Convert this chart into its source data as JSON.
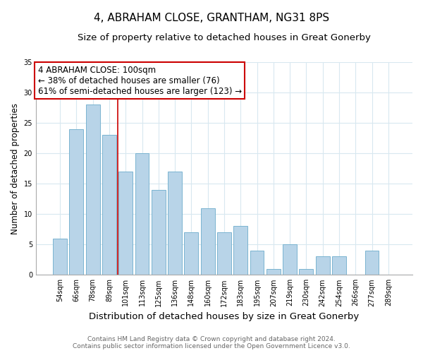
{
  "title": "4, ABRAHAM CLOSE, GRANTHAM, NG31 8PS",
  "subtitle": "Size of property relative to detached houses in Great Gonerby",
  "xlabel": "Distribution of detached houses by size in Great Gonerby",
  "ylabel": "Number of detached properties",
  "categories": [
    "54sqm",
    "66sqm",
    "78sqm",
    "89sqm",
    "101sqm",
    "113sqm",
    "125sqm",
    "136sqm",
    "148sqm",
    "160sqm",
    "172sqm",
    "183sqm",
    "195sqm",
    "207sqm",
    "219sqm",
    "230sqm",
    "242sqm",
    "254sqm",
    "266sqm",
    "277sqm",
    "289sqm"
  ],
  "values": [
    6,
    24,
    28,
    23,
    17,
    20,
    14,
    17,
    7,
    11,
    7,
    8,
    4,
    1,
    5,
    1,
    3,
    3,
    0,
    4,
    0
  ],
  "bar_color": "#b8d4e8",
  "bar_edge_color": "#7ab4d0",
  "vline_color": "#cc0000",
  "vline_x": 3.5,
  "annotation_title": "4 ABRAHAM CLOSE: 100sqm",
  "annotation_line1": "← 38% of detached houses are smaller (76)",
  "annotation_line2": "61% of semi-detached houses are larger (123) →",
  "annotation_box_color": "#ffffff",
  "annotation_box_edge": "#cc0000",
  "ylim": [
    0,
    35
  ],
  "yticks": [
    0,
    5,
    10,
    15,
    20,
    25,
    30,
    35
  ],
  "footer1": "Contains HM Land Registry data © Crown copyright and database right 2024.",
  "footer2": "Contains public sector information licensed under the Open Government Licence v3.0.",
  "title_fontsize": 11,
  "subtitle_fontsize": 9.5,
  "xlabel_fontsize": 9.5,
  "ylabel_fontsize": 8.5,
  "tick_fontsize": 7,
  "footer_fontsize": 6.5,
  "annotation_fontsize": 8.5,
  "grid_color": "#d8e8f0"
}
